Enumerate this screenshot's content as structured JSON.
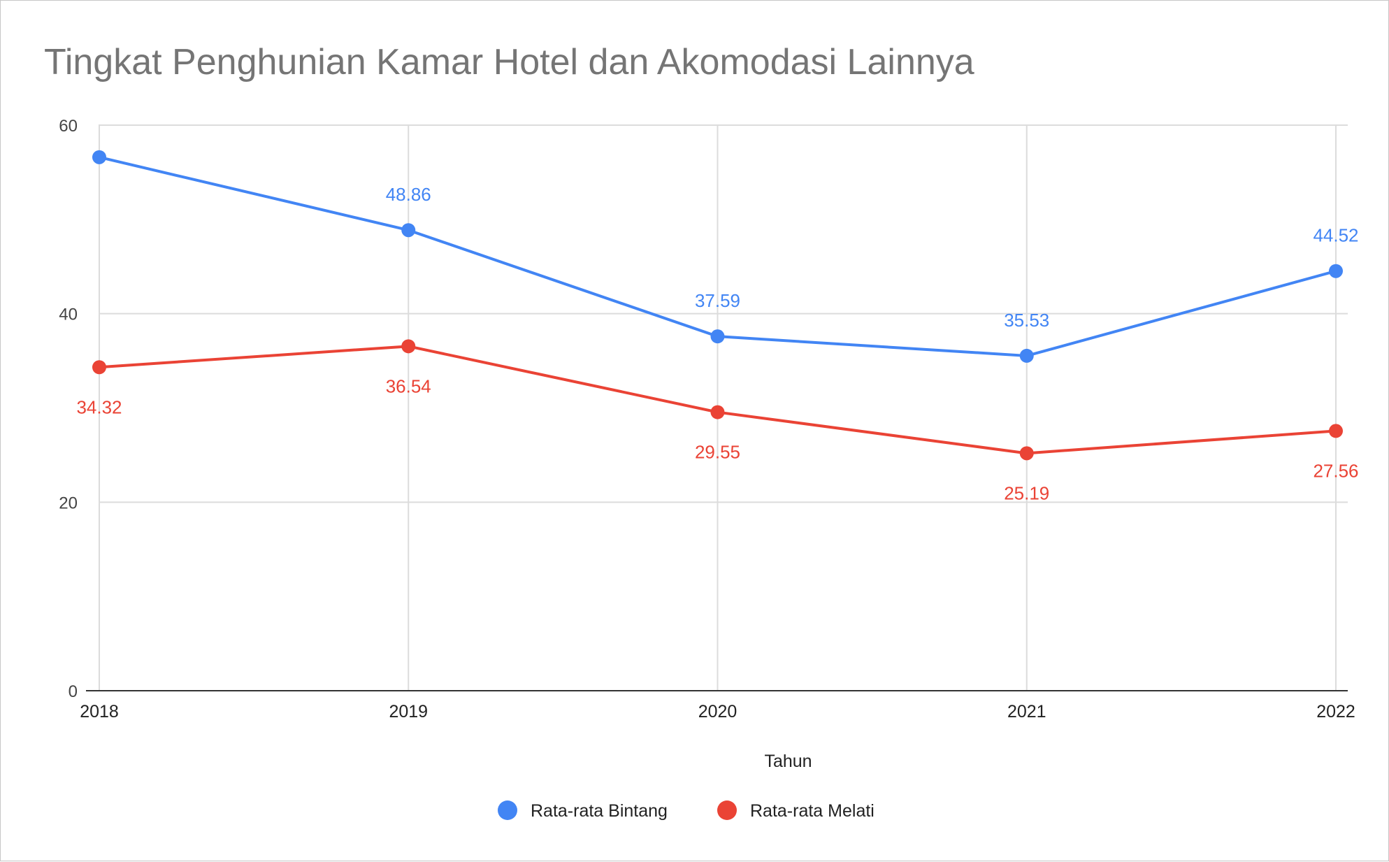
{
  "chart_data": {
    "type": "line",
    "title": "Tingkat Penghunian Kamar Hotel dan Akomodasi Lainnya",
    "xlabel": "Tahun",
    "ylabel": "",
    "categories": [
      "2018",
      "2019",
      "2020",
      "2021",
      "2022"
    ],
    "ylim": [
      0,
      60
    ],
    "yticks": [
      0,
      20,
      40,
      60
    ],
    "grid": true,
    "legend_position": "bottom",
    "series": [
      {
        "name": "Rata-rata Bintang",
        "color": "#4285f4",
        "values": [
          56.6,
          48.86,
          37.59,
          35.53,
          44.52
        ],
        "data_labels": [
          "",
          "48.86",
          "37.59",
          "35.53",
          "44.52"
        ],
        "label_position": "above"
      },
      {
        "name": "Rata-rata Melati",
        "color": "#ea4335",
        "values": [
          34.32,
          36.54,
          29.55,
          25.19,
          27.56
        ],
        "data_labels": [
          "34.32",
          "36.54",
          "29.55",
          "25.19",
          "27.56"
        ],
        "label_position": "below"
      }
    ]
  }
}
